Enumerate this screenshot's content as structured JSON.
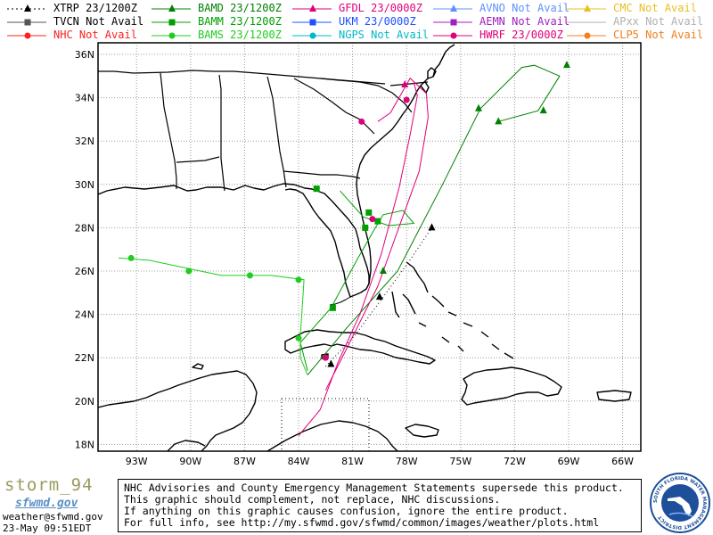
{
  "legend": {
    "items": [
      {
        "id": "xtrp",
        "text": "XTRP  23/1200Z",
        "color": "#000000",
        "marker": "triangle",
        "line": "dotted"
      },
      {
        "id": "tvcn",
        "text": "TVCN  Not Avail",
        "color": "#555555",
        "marker": "square",
        "line": "solid"
      },
      {
        "id": "nhc",
        "text": "NHC  Not Avail",
        "color": "#ff2020",
        "marker": "circle",
        "line": "solid"
      },
      {
        "id": "bamd",
        "text": "BAMD 23/1200Z",
        "color": "#008000",
        "marker": "triangle",
        "line": "solid"
      },
      {
        "id": "bamm",
        "text": "BAMM 23/1200Z",
        "color": "#00a000",
        "marker": "square",
        "line": "solid"
      },
      {
        "id": "bams",
        "text": "BAMS 23/1200Z",
        "color": "#20cc20",
        "marker": "circle",
        "line": "solid"
      },
      {
        "id": "gfdl",
        "text": "GFDL  23/0000Z",
        "color": "#e0007a",
        "marker": "triangle",
        "line": "solid"
      },
      {
        "id": "ukm",
        "text": "UKM   23/0000Z",
        "color": "#2050ff",
        "marker": "square",
        "line": "solid"
      },
      {
        "id": "ngps",
        "text": "NGPS Not Avail",
        "color": "#00b8c8",
        "marker": "circle",
        "line": "solid"
      },
      {
        "id": "avno",
        "text": "AVNO Not Avail",
        "color": "#6090ff",
        "marker": "triangle",
        "line": "solid"
      },
      {
        "id": "aemn",
        "text": "AEMN Not Avail",
        "color": "#a020c0",
        "marker": "square",
        "line": "solid"
      },
      {
        "id": "hwrf",
        "text": "HWRF 23/0000Z",
        "color": "#e0007a",
        "marker": "circle",
        "line": "solid"
      },
      {
        "id": "cmc",
        "text": "CMC  Not Avail",
        "color": "#e8c020",
        "marker": "triangle",
        "line": "solid"
      },
      {
        "id": "apxx",
        "text": "APxx Not Avail",
        "color": "#b0b0b0",
        "marker": "none",
        "line": "solid"
      },
      {
        "id": "clp5",
        "text": "CLP5 Not Avail",
        "color": "#f08020",
        "marker": "circle",
        "line": "solid"
      }
    ]
  },
  "axes": {
    "lat_labels": [
      "36N",
      "34N",
      "32N",
      "30N",
      "28N",
      "26N",
      "24N",
      "22N",
      "20N",
      "18N"
    ],
    "lon_labels": [
      "93W",
      "90W",
      "87W",
      "84W",
      "81W",
      "78W",
      "75W",
      "72W",
      "69W",
      "66W"
    ]
  },
  "tracks": {
    "xtrp": [
      [
        -82.5,
        21.6
      ],
      [
        -80.9,
        23.0
      ],
      [
        -79.3,
        24.8
      ],
      [
        -77.9,
        26.4
      ],
      [
        -76.6,
        28.0
      ]
    ],
    "bamd": [
      [
        -83.5,
        21.2
      ],
      [
        -81.3,
        23.4
      ],
      [
        -78.5,
        26.0
      ],
      [
        -76.0,
        30.0
      ],
      [
        -73.9,
        33.5
      ],
      [
        -71.6,
        35.4
      ],
      [
        -70.9,
        35.5
      ],
      [
        -69.5,
        35.0
      ],
      [
        -70.7,
        33.4
      ],
      [
        -72.9,
        32.9
      ]
    ],
    "bamm": [
      [
        -83.5,
        21.4
      ],
      [
        -83.9,
        22.7
      ],
      [
        -82.2,
        24.3
      ],
      [
        -80.7,
        26.6
      ],
      [
        -79.8,
        27.9
      ],
      [
        -79.3,
        28.6
      ],
      [
        -78.2,
        28.8
      ],
      [
        -77.6,
        28.2
      ],
      [
        -79.0,
        28.1
      ],
      [
        -80.4,
        28.5
      ],
      [
        -81.7,
        29.7
      ]
    ],
    "bams": [
      [
        -83.5,
        21.2
      ],
      [
        -83.9,
        22.0
      ],
      [
        -83.9,
        23.0
      ],
      [
        -83.7,
        25.6
      ],
      [
        -85.5,
        25.8
      ],
      [
        -88.3,
        25.8
      ],
      [
        -92.3,
        26.5
      ],
      [
        -94.0,
        26.6
      ]
    ],
    "gfdl": [
      [
        -84.0,
        18.4
      ],
      [
        -82.8,
        19.6
      ],
      [
        -81.8,
        21.8
      ],
      [
        -80.6,
        24.0
      ],
      [
        -79.4,
        26.8
      ],
      [
        -78.4,
        29.9
      ],
      [
        -77.8,
        32.3
      ],
      [
        -77.4,
        34.1
      ],
      [
        -77.6,
        34.7
      ]
    ],
    "hwrf": [
      [
        -82.5,
        20.5
      ],
      [
        -81.4,
        22.3
      ],
      [
        -79.6,
        25.3
      ],
      [
        -78.3,
        28.3
      ],
      [
        -77.3,
        30.6
      ],
      [
        -76.8,
        33.1
      ],
      [
        -76.9,
        34.2
      ],
      [
        -77.8,
        34.9
      ],
      [
        -78.9,
        33.3
      ],
      [
        -79.6,
        32.9
      ]
    ]
  },
  "markers": {
    "xtrp": [
      [
        -82.2,
        21.7
      ],
      [
        -79.5,
        24.8
      ],
      [
        -76.6,
        28.0
      ]
    ],
    "bamd": [
      [
        -79.3,
        26.0
      ],
      [
        -74.0,
        33.5
      ],
      [
        -72.9,
        32.9
      ],
      [
        -70.4,
        33.4
      ],
      [
        -69.1,
        35.5
      ]
    ],
    "bamm": [
      [
        -82.1,
        24.3
      ],
      [
        -80.3,
        28.0
      ],
      [
        -80.1,
        28.7
      ],
      [
        -79.6,
        28.3
      ],
      [
        -83.0,
        29.8
      ]
    ],
    "bams": [
      [
        -84.0,
        22.9
      ],
      [
        -84.0,
        25.6
      ],
      [
        -86.7,
        25.8
      ],
      [
        -90.1,
        26.0
      ],
      [
        -93.3,
        26.6
      ]
    ],
    "gfdl": [
      [
        -78.1,
        34.6
      ]
    ],
    "hwrf": [
      [
        -82.5,
        22.0
      ],
      [
        -79.9,
        28.4
      ],
      [
        -78.0,
        33.9
      ],
      [
        -80.5,
        32.9
      ]
    ]
  },
  "footer": {
    "brand": "storm_94",
    "brand_site": "sfwmd.gov",
    "email": "weather@sfwmd.gov",
    "timestamp": "23-May 09:51EDT",
    "disclaimer": [
      "NHC Advisories and County Emergency Management Statements supersede this product.",
      "This graphic should complement, not replace, NHC discussions.",
      "If anything on this graphic causes confusion, ignore the entire product.",
      "For full info, see  http://my.sfwmd.gov/sfwmd/common/images/weather/plots.html"
    ],
    "logo_text": "SOUTH FLORIDA WATER MANAGEMENT DISTRICT"
  }
}
